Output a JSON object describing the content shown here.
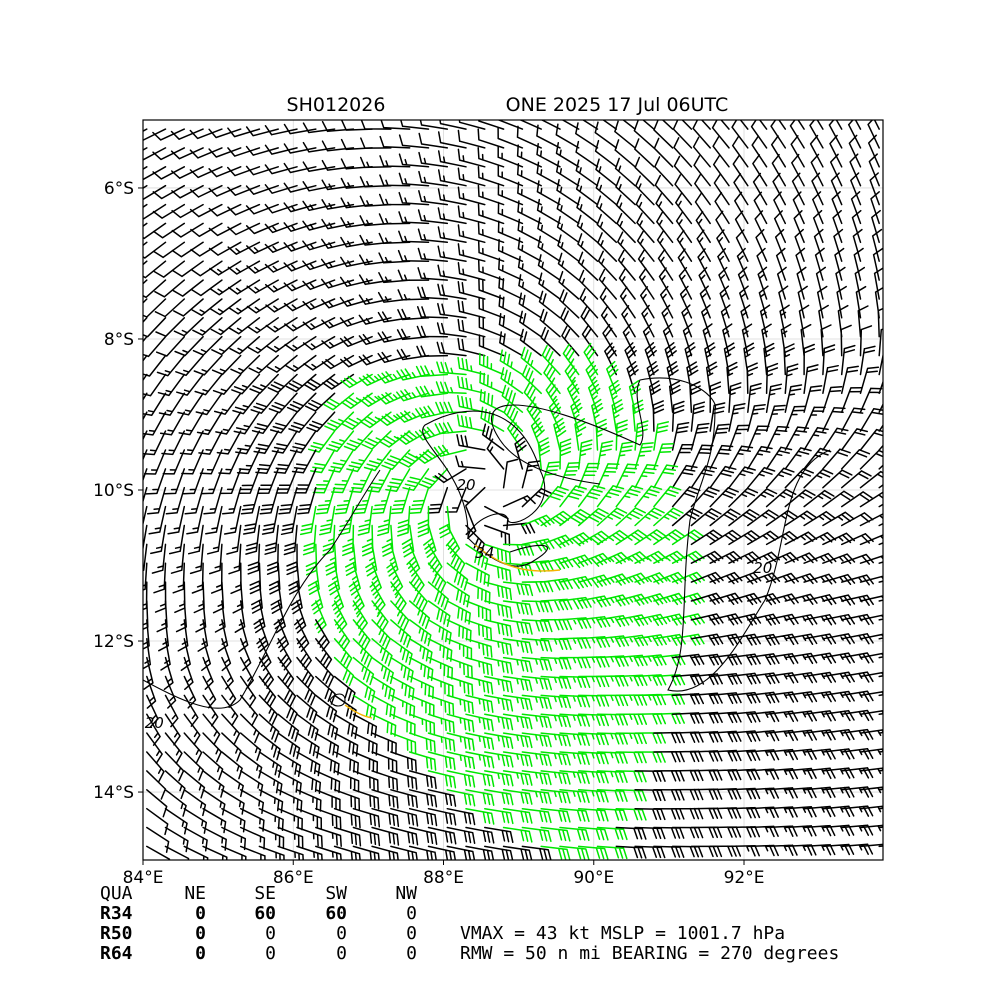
{
  "chart_data": {
    "type": "wind-barb-map",
    "title_left": "SH012026",
    "title_right": "ONE 2025 17 Jul 06UTC",
    "xlim": [
      84,
      93.85
    ],
    "ylim": [
      -14.9,
      -5.1
    ],
    "x_ticks": [
      {
        "value": 84,
        "label": "84°E"
      },
      {
        "value": 86,
        "label": "86°E"
      },
      {
        "value": 88,
        "label": "88°E"
      },
      {
        "value": 90,
        "label": "90°E"
      },
      {
        "value": 92,
        "label": "92°E"
      }
    ],
    "y_ticks": [
      {
        "value": -6,
        "label": "6°S"
      },
      {
        "value": -8,
        "label": "8°S"
      },
      {
        "value": -10,
        "label": "10°S"
      },
      {
        "value": -12,
        "label": "12°S"
      },
      {
        "value": -14,
        "label": "14°S"
      }
    ],
    "grid": true,
    "storm_center": {
      "lon": 88.6,
      "lat": -10.0
    },
    "barb_colors": {
      "below_34": "#000000",
      "gale": "#00e600",
      "storm": "#f5b400"
    },
    "contour_labels": [
      {
        "text": "20",
        "lon": 88.3,
        "lat": -10.0
      },
      {
        "text": "34",
        "lon": 88.55,
        "lat": -10.9
      },
      {
        "text": "20",
        "lon": 92.25,
        "lat": -11.1
      },
      {
        "text": "20",
        "lon": 84.15,
        "lat": -13.15
      }
    ]
  },
  "radii_table": {
    "header": [
      "QUA",
      "NE",
      "SE",
      "SW",
      "NW"
    ],
    "rows": [
      {
        "label": "R34",
        "values": [
          "0",
          "60",
          "60",
          "0"
        ]
      },
      {
        "label": "R50",
        "values": [
          "0",
          "0",
          "0",
          "0"
        ]
      },
      {
        "label": "R64",
        "values": [
          "0",
          "0",
          "0",
          "0"
        ]
      }
    ]
  },
  "summary": {
    "line1": "VMAX =  43 kt MSLP = 1001.7 hPa",
    "line2": "RMW =  50 n mi BEARING = 270 degrees"
  }
}
